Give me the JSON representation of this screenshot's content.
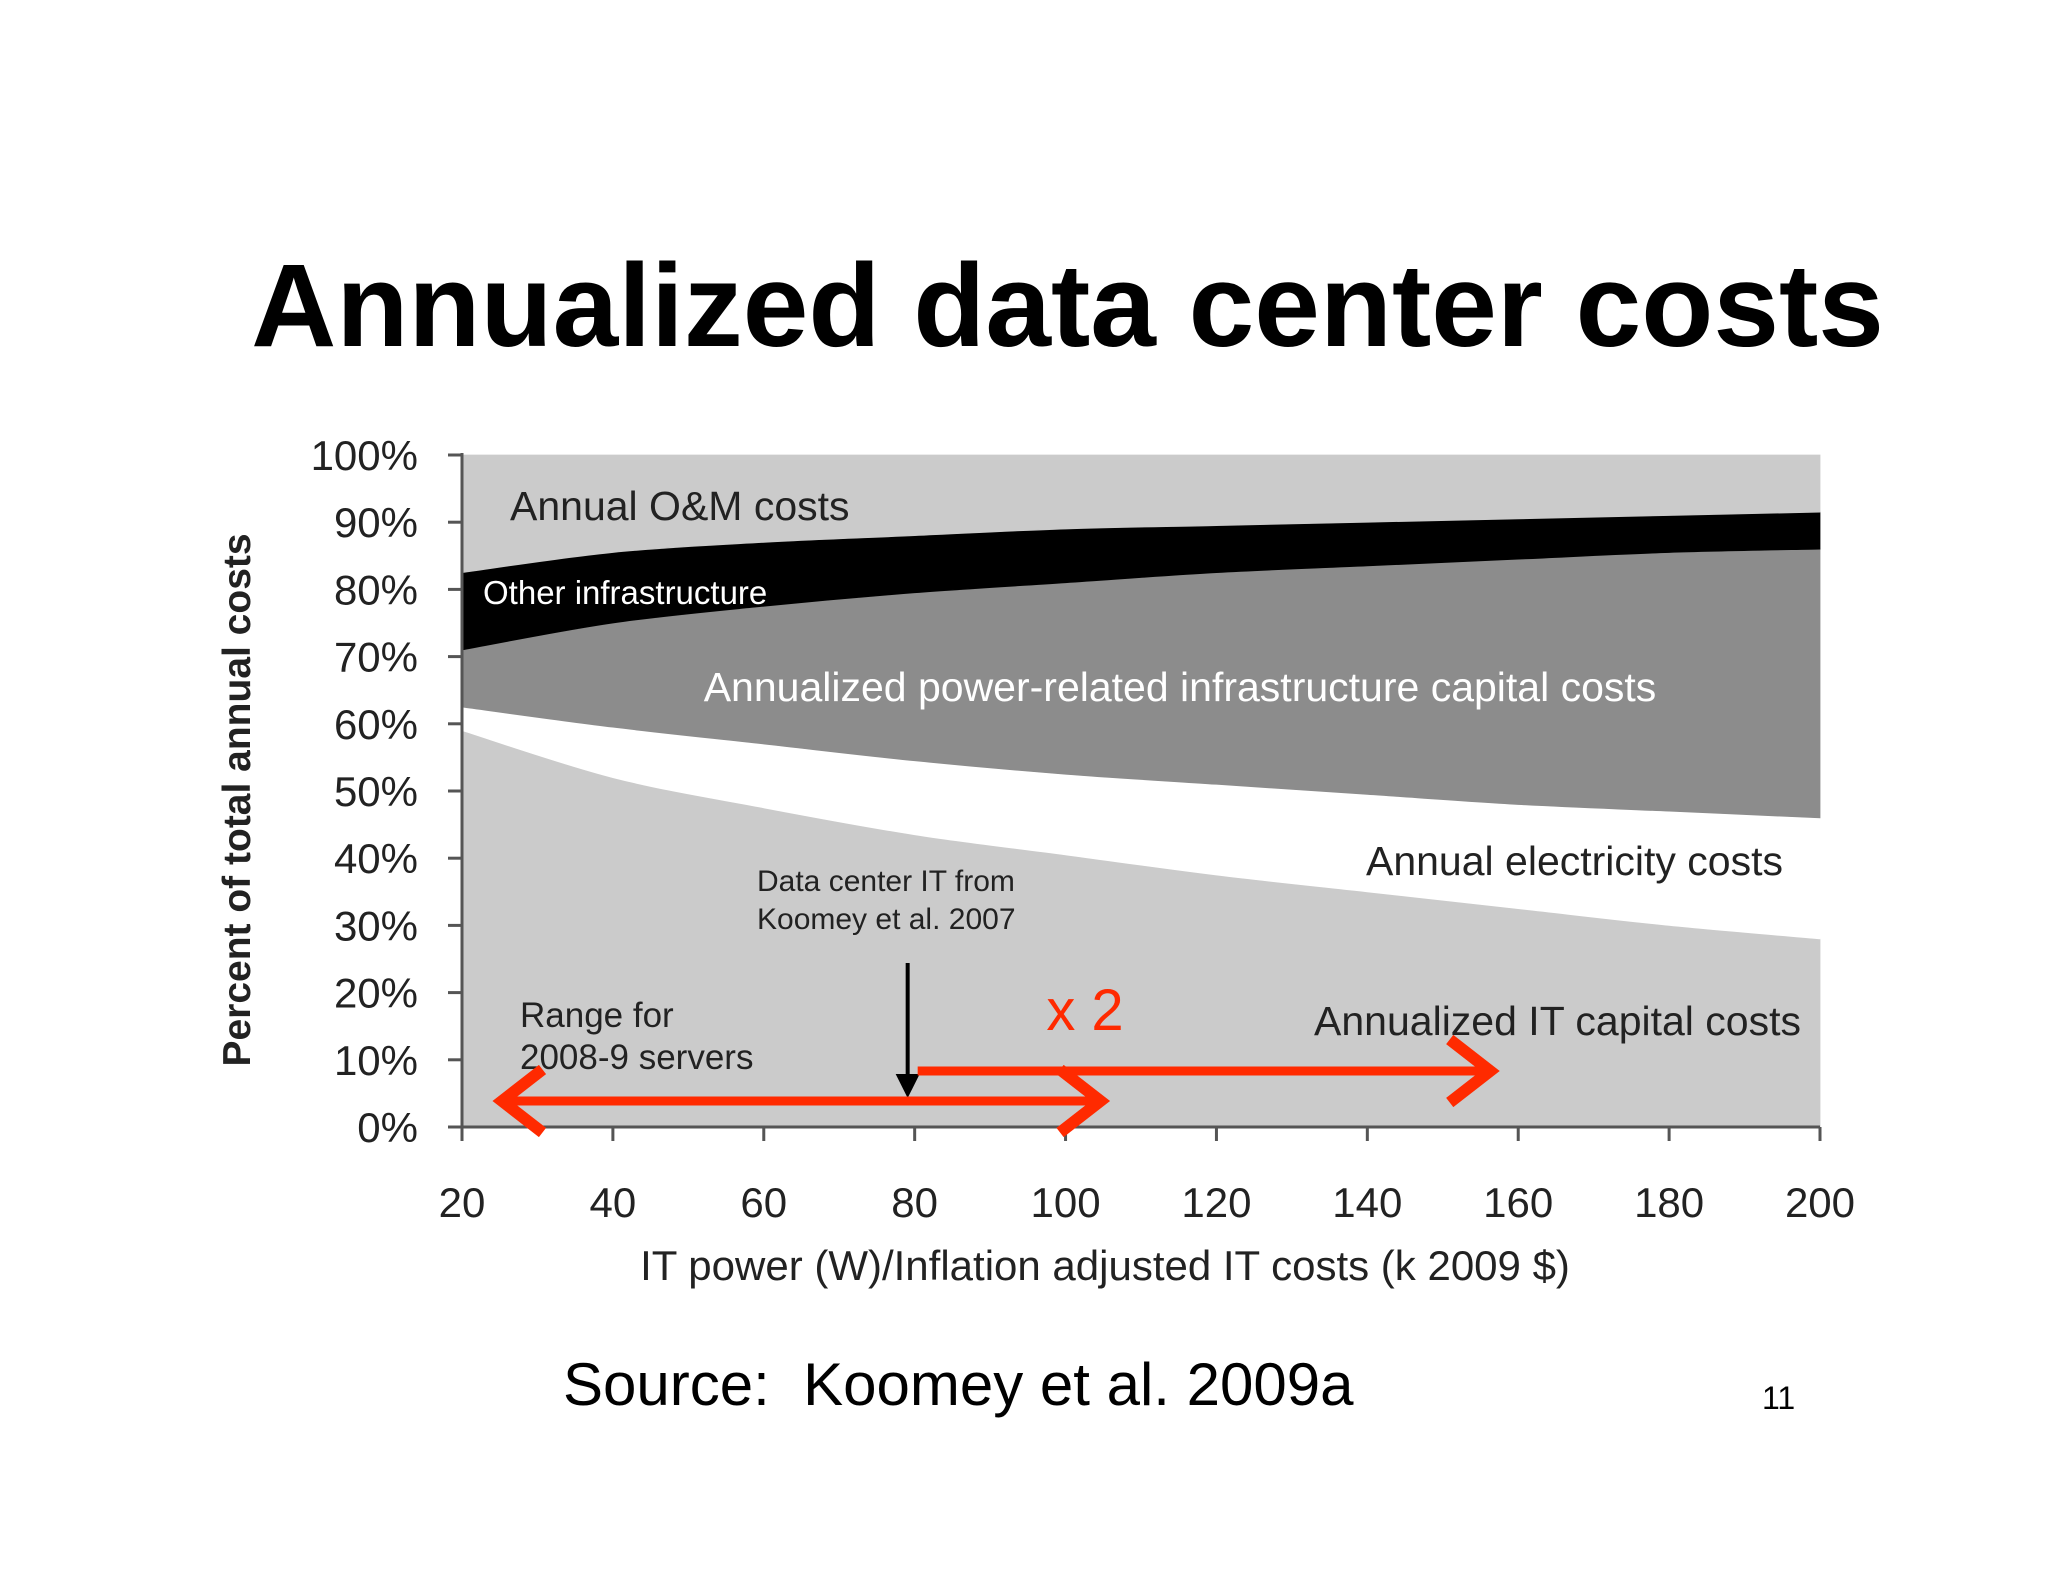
{
  "slide": {
    "title": "Annualized data center costs",
    "source": "Source:  Koomey et al. 2009a",
    "page_number": "11"
  },
  "chart_data": {
    "type": "area",
    "stacked": true,
    "normalized_percent": true,
    "xlabel": "IT power (W)/Inflation adjusted IT costs (k 2009 $)",
    "ylabel": "Percent of total annual costs",
    "xlim": [
      20,
      200
    ],
    "ylim": [
      0,
      100
    ],
    "x_ticks": [
      20,
      40,
      60,
      80,
      100,
      120,
      140,
      160,
      180,
      200
    ],
    "y_ticks": [
      "0%",
      "10%",
      "20%",
      "30%",
      "40%",
      "50%",
      "60%",
      "70%",
      "80%",
      "90%",
      "100%"
    ],
    "x": [
      20,
      40,
      60,
      80,
      100,
      120,
      140,
      160,
      180,
      200
    ],
    "boundaries": {
      "it_capital_top": [
        59,
        52,
        47.5,
        43.5,
        40.5,
        37.5,
        35,
        32.5,
        30,
        28
      ],
      "electricity_top": [
        62.5,
        59.5,
        57,
        54.5,
        52.5,
        51,
        49.5,
        48,
        47,
        46
      ],
      "power_infra_top": [
        71,
        75,
        77.5,
        79.5,
        81,
        82.5,
        83.5,
        84.5,
        85.5,
        86
      ],
      "other_infra_top": [
        82.5,
        85.5,
        87,
        88,
        89,
        89.5,
        90,
        90.5,
        91,
        91.5
      ]
    },
    "series": [
      {
        "name": "Annualized IT capital costs",
        "color": "#cbcbcb"
      },
      {
        "name": "Annual electricity costs",
        "color": "#ffffff"
      },
      {
        "name": "Annualized power-related infrastructure capital costs",
        "color": "#8c8c8c"
      },
      {
        "name": "Other infrastructure",
        "color": "#000000"
      },
      {
        "name": "Annual O&M costs",
        "color": "#cbcbcb"
      }
    ],
    "annotations": {
      "data_center_it": [
        "Data center IT from",
        "Koomey et al. 2007"
      ],
      "data_center_it_x": 80,
      "range": [
        "Range for",
        "2008-9 servers"
      ],
      "range_from": 20,
      "range_to": 100,
      "x2_label": "x 2",
      "x2_from": 80,
      "x2_to": 160,
      "arrow_color": "#ff2a00"
    }
  }
}
